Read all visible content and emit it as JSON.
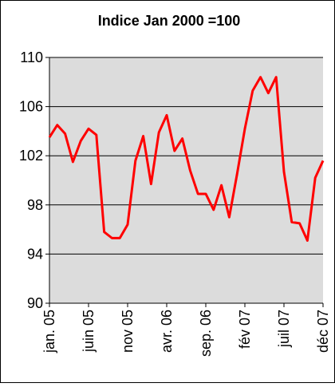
{
  "chart_data": {
    "type": "line",
    "title": "Indice Jan 2000 =100",
    "categories": [
      "jan. 05",
      null,
      null,
      null,
      null,
      "juin 05",
      null,
      null,
      null,
      null,
      "nov 05",
      null,
      null,
      null,
      null,
      "avr. 06",
      null,
      null,
      null,
      null,
      "sep. 06",
      null,
      null,
      null,
      null,
      "fév 07",
      null,
      null,
      null,
      null,
      "juil 07",
      null,
      null,
      null,
      null,
      "déc 07"
    ],
    "series": [
      {
        "color": "#ff0000",
        "values": [
          103.5,
          104.5,
          103.8,
          101.5,
          103.2,
          104.2,
          103.7,
          95.8,
          95.3,
          95.3,
          96.4,
          101.6,
          103.6,
          99.7,
          103.9,
          105.3,
          102.4,
          103.4,
          100.8,
          98.9,
          98.9,
          97.6,
          99.6,
          97.0,
          100.5,
          104.2,
          107.3,
          108.4,
          107.1,
          108.4,
          100.7,
          96.6,
          96.5,
          95.1,
          100.2,
          101.6
        ]
      }
    ],
    "ylim": [
      90,
      110
    ],
    "yticks": [
      90,
      94,
      98,
      102,
      106,
      110
    ],
    "grid": true,
    "plot_background": "#dcdcdc"
  }
}
